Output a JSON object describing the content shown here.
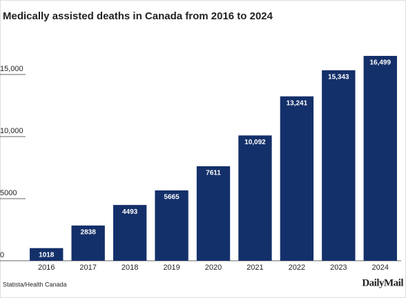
{
  "chart_data": {
    "type": "bar",
    "title": "Medically assisted deaths in Canada from 2016 to 2024",
    "categories": [
      "2016",
      "2017",
      "2018",
      "2019",
      "2020",
      "2021",
      "2022",
      "2023",
      "2024"
    ],
    "values": [
      1018,
      2838,
      4493,
      5665,
      7611,
      10092,
      13241,
      15343,
      16499
    ],
    "value_labels": [
      "1018",
      "2838",
      "4493",
      "5665",
      "7611",
      "10,092",
      "13,241",
      "15,343",
      "16,499"
    ],
    "color": "#14306a",
    "ylim": [
      0,
      17000
    ],
    "yticks": [
      0,
      5000,
      {
        "value": 10000,
        "label": "10,000"
      },
      {
        "value": 15000,
        "label": "15,000"
      }
    ],
    "grid": true,
    "source": "Statista/Health Canada",
    "logo": "DailyMail"
  }
}
